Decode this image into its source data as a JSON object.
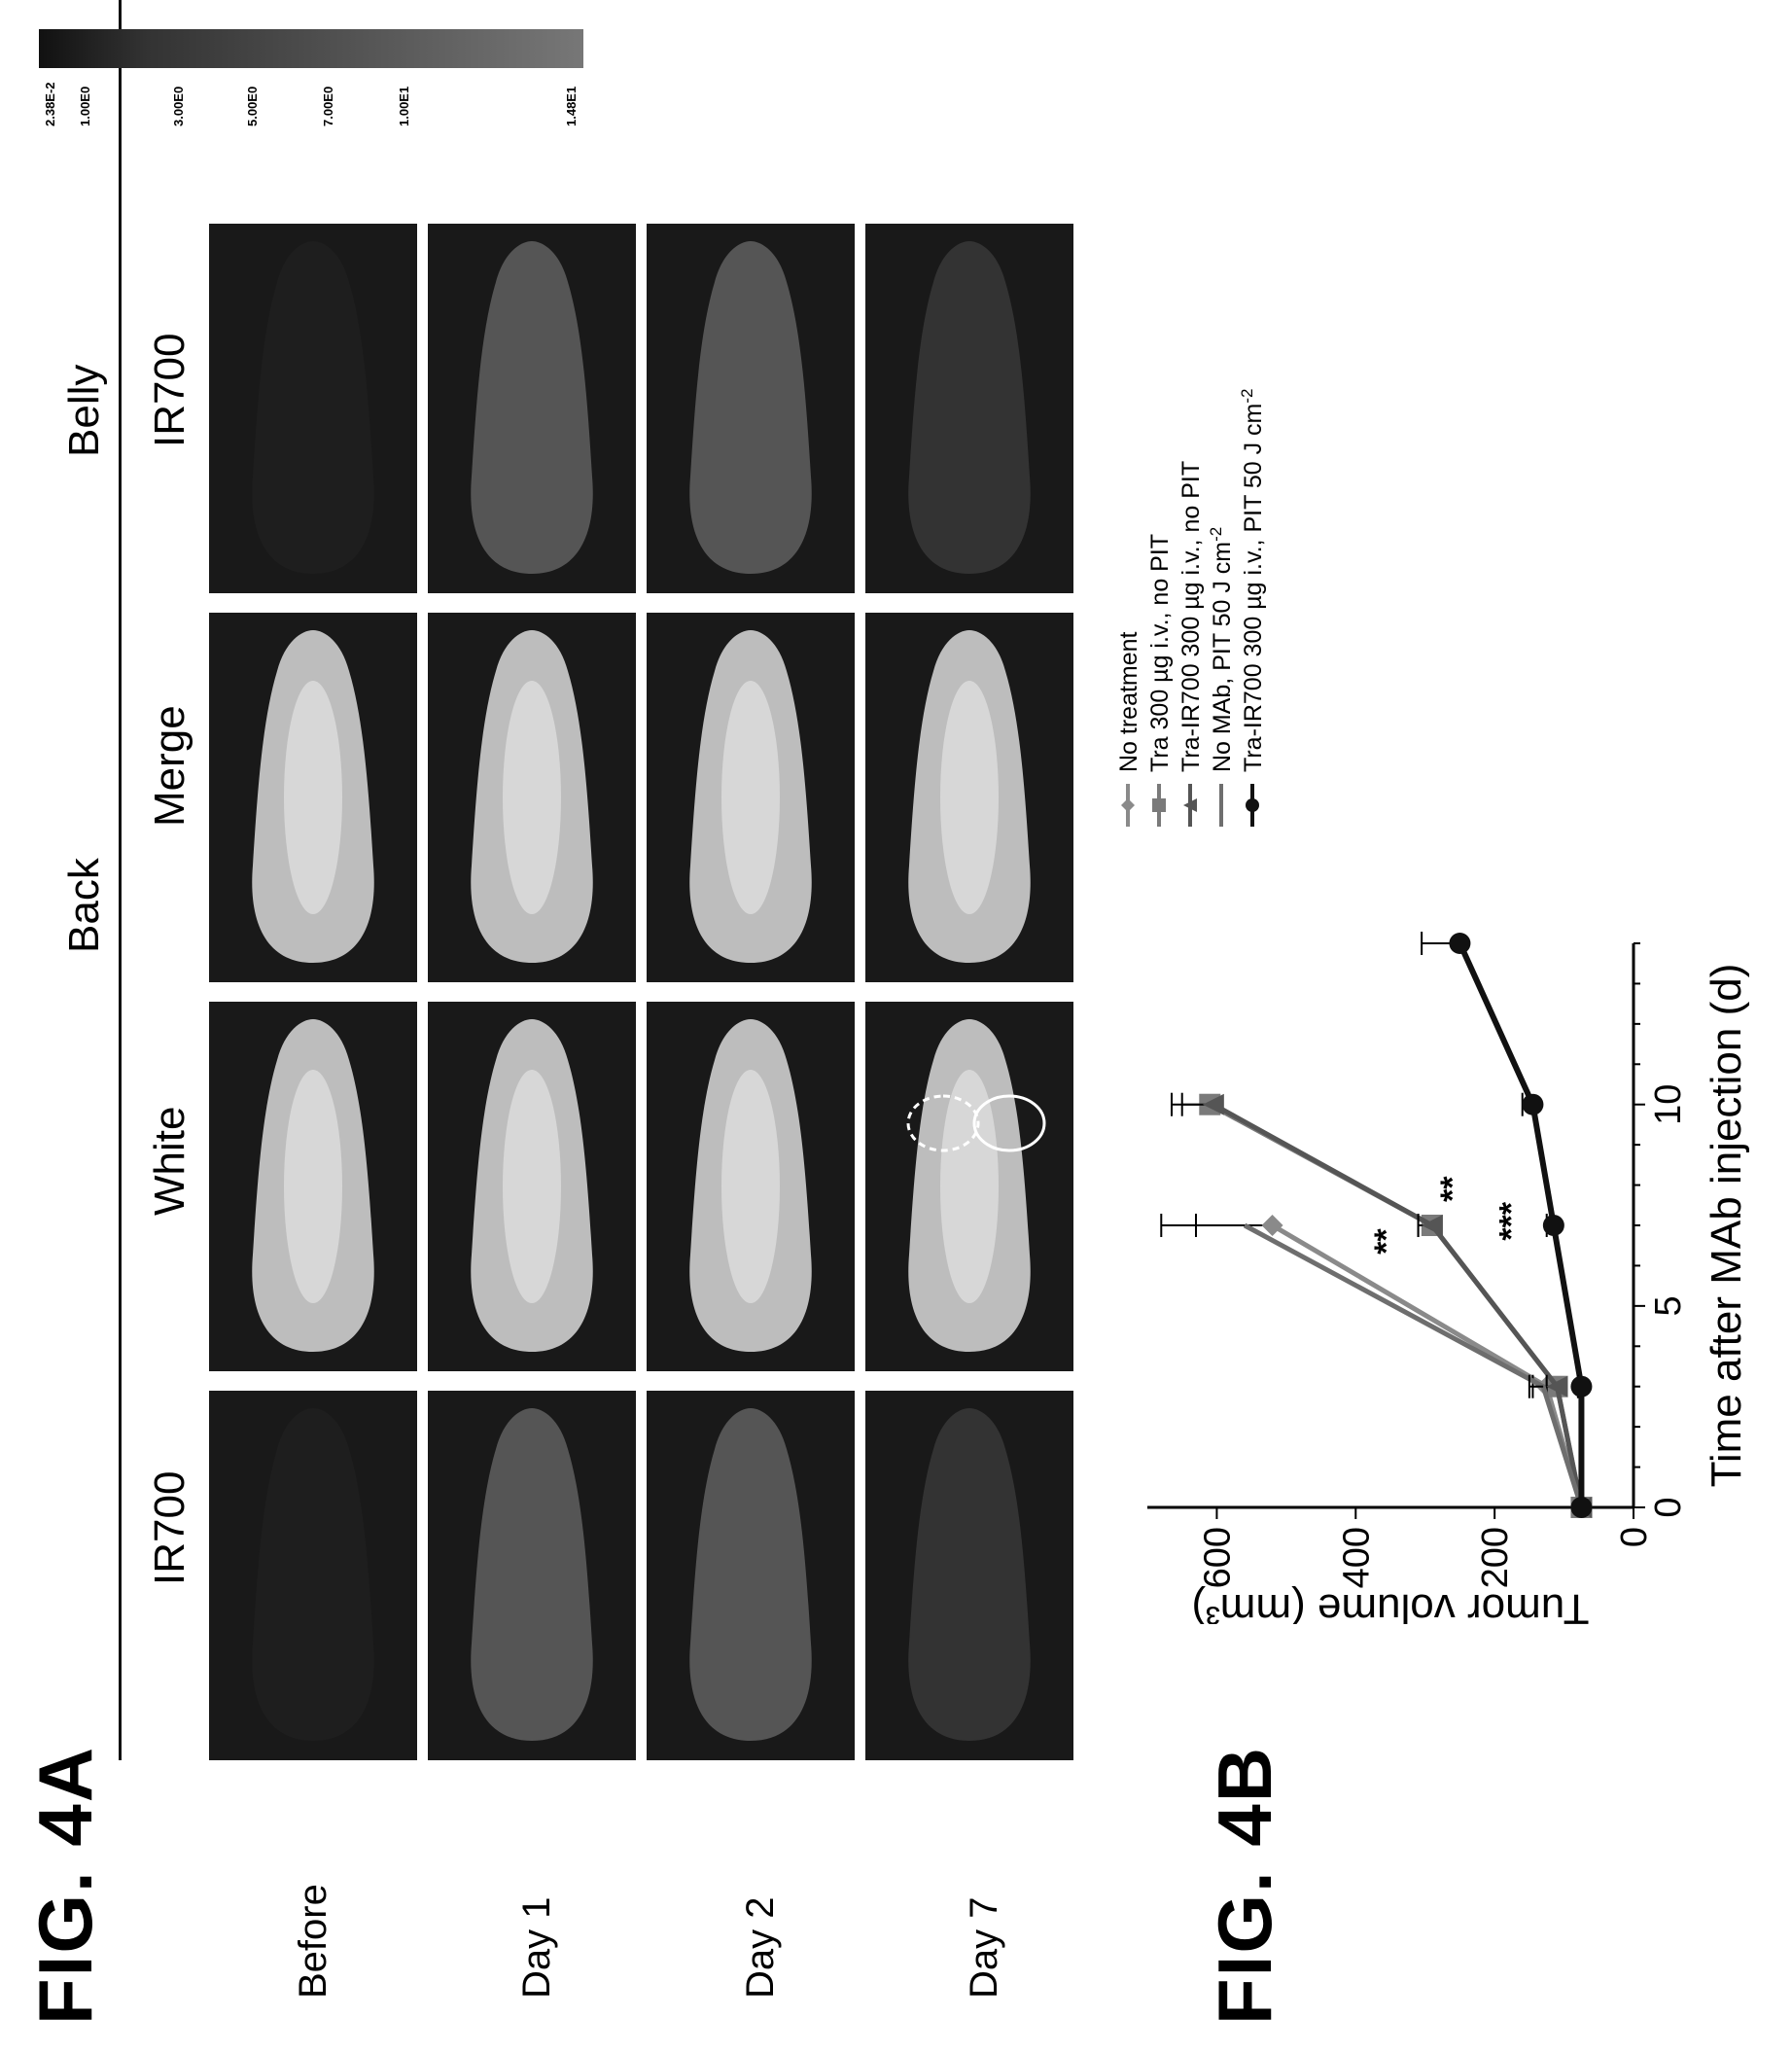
{
  "figure_a": {
    "label": "FIG. 4A",
    "group_headers": {
      "back": "Back",
      "belly": "Belly"
    },
    "columns": [
      "IR700",
      "White",
      "Merge",
      "IR700"
    ],
    "rows": [
      "Before",
      "Day 1",
      "Day 2",
      "Day 7"
    ],
    "colorbar_ticks": [
      "1.48E1",
      "1.00E1",
      "7.00E0",
      "5.00E0",
      "3.00E0",
      "1.00E0",
      "2.38E-2"
    ]
  },
  "figure_b": {
    "label": "FIG. 4B",
    "legend": [
      "No treatment",
      "Tra 300 µg i.v., no PIT",
      "Tra-IR700 300 µg i.v., no PIT",
      "No MAb, PIT 50 J cm",
      "Tra-IR700 300 µg i.v., PIT 50 J cm"
    ],
    "legend_superscripts": [
      "",
      "",
      "",
      "-2",
      "-2"
    ],
    "significance_marks": [
      "**",
      "**",
      "***"
    ]
  },
  "chart_data": {
    "type": "line",
    "xlabel": "Time after MAb injection (d)",
    "ylabel": "Tumor volume (mm³)",
    "xlim": [
      0,
      14
    ],
    "ylim": [
      0,
      700
    ],
    "xticks": [
      0,
      5,
      10
    ],
    "yticks": [
      0,
      200,
      400,
      600
    ],
    "series": [
      {
        "name": "No treatment",
        "x": [
          0,
          3,
          7
        ],
        "y": [
          75,
          125,
          520
        ],
        "err": [
          0,
          20,
          110
        ],
        "marker": "diamond",
        "color": "#8a8a8a"
      },
      {
        "name": "Tra 300 µg i.v., no PIT",
        "x": [
          0,
          3,
          7,
          10
        ],
        "y": [
          75,
          110,
          290,
          610
        ],
        "err": [
          0,
          15,
          20,
          55
        ],
        "marker": "square",
        "color": "#7a7a7a"
      },
      {
        "name": "Tra-IR700 300 µg i.v., no PIT",
        "x": [
          0,
          3,
          7,
          10
        ],
        "y": [
          75,
          110,
          290,
          605
        ],
        "err": [
          0,
          15,
          20,
          45
        ],
        "marker": "triangle",
        "color": "#555555"
      },
      {
        "name": "No MAb, PIT 50 J cm-2",
        "x": [
          0,
          3,
          7
        ],
        "y": [
          75,
          130,
          560
        ],
        "err": [
          0,
          20,
          120
        ],
        "marker": "none",
        "color": "#6e6e6e"
      },
      {
        "name": "Tra-IR700 300 µg i.v., PIT 50 J cm-2",
        "x": [
          0,
          3,
          7,
          10,
          14
        ],
        "y": [
          75,
          75,
          115,
          145,
          250
        ],
        "err": [
          0,
          5,
          10,
          15,
          55
        ],
        "marker": "circle",
        "color": "#111111"
      }
    ]
  }
}
